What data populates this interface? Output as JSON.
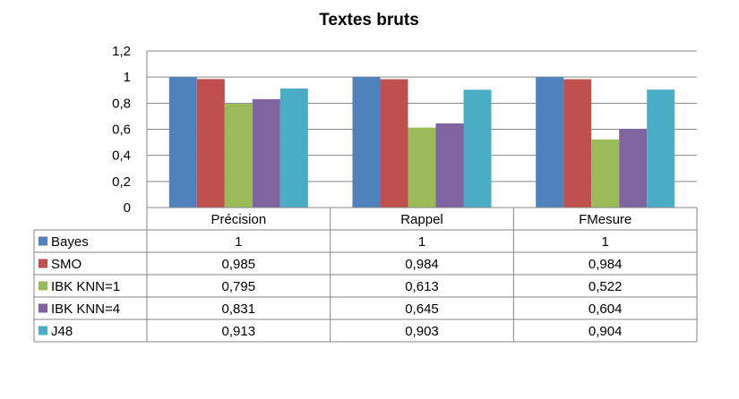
{
  "chart_data": {
    "type": "bar",
    "title": "Textes bruts",
    "xlabel": "",
    "ylabel": "",
    "categories": [
      "Précision",
      "Rappel",
      "FMesure"
    ],
    "ylim": [
      0,
      1.2
    ],
    "yticks": [
      0,
      0.2,
      0.4,
      0.6,
      0.8,
      1,
      1.2
    ],
    "ytick_labels": [
      "0",
      "0,2",
      "0,4",
      "0,6",
      "0,8",
      "1",
      "1,2"
    ],
    "grid": true,
    "legend": "data-table-left",
    "series": [
      {
        "name": "Bayes",
        "color": "#4F81BD",
        "values": [
          1,
          1,
          1
        ],
        "labels": [
          "1",
          "1",
          "1"
        ]
      },
      {
        "name": "SMO",
        "color": "#C0504D",
        "values": [
          0.985,
          0.984,
          0.984
        ],
        "labels": [
          "0,985",
          "0,984",
          "0,984"
        ]
      },
      {
        "name": "IBK KNN=1",
        "color": "#9BBB59",
        "values": [
          0.795,
          0.613,
          0.522
        ],
        "labels": [
          "0,795",
          "0,613",
          "0,522"
        ]
      },
      {
        "name": "IBK KNN=4",
        "color": "#8064A2",
        "values": [
          0.831,
          0.645,
          0.604
        ],
        "labels": [
          "0,831",
          "0,645",
          "0,604"
        ]
      },
      {
        "name": "J48",
        "color": "#4BACC6",
        "values": [
          0.913,
          0.903,
          0.904
        ],
        "labels": [
          "0,913",
          "0,903",
          "0,904"
        ]
      }
    ]
  }
}
